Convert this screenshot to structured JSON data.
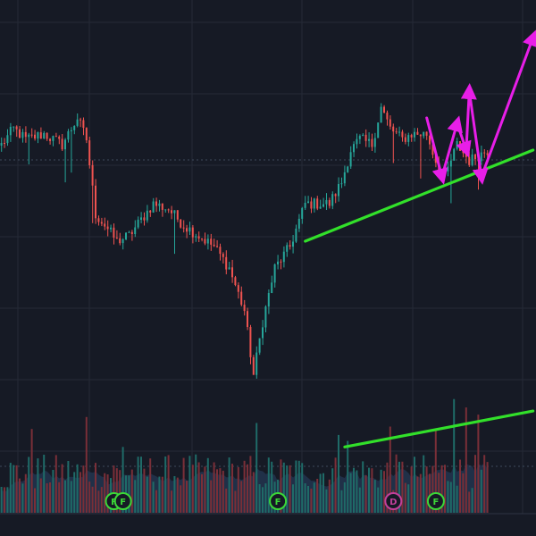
{
  "colors": {
    "background": "#161a25",
    "grid": "#252a36",
    "up": "#26a69a",
    "down": "#ef5350",
    "volume_up": "#1f6b68",
    "volume_down": "#7a2f38",
    "volume_area": "#2a4366",
    "trendline": "#32e02a",
    "pattern": "#e81ee8",
    "price_line": "#3d4a5c",
    "volume_ma_line": "#3d4a5c",
    "marker_f": "#3cd838",
    "marker_d": "#c2409a"
  },
  "chart_data": {
    "type": "candlestick",
    "title": "",
    "xlabel": "",
    "ylabel": "",
    "ylim": [
      0,
      100
    ],
    "volume_ylim": [
      0,
      100
    ],
    "grid": true,
    "price_anchor_points": [
      [
        0,
        73
      ],
      [
        4,
        76
      ],
      [
        8,
        74
      ],
      [
        14,
        75
      ],
      [
        20,
        73
      ],
      [
        25,
        78
      ],
      [
        28,
        74
      ],
      [
        31,
        60
      ],
      [
        34,
        58
      ],
      [
        38,
        55
      ],
      [
        42,
        56
      ],
      [
        46,
        59
      ],
      [
        50,
        62
      ],
      [
        55,
        61
      ],
      [
        60,
        58
      ],
      [
        65,
        56
      ],
      [
        70,
        54
      ],
      [
        75,
        50
      ],
      [
        80,
        42
      ],
      [
        83,
        30
      ],
      [
        86,
        40
      ],
      [
        90,
        50
      ],
      [
        95,
        54
      ],
      [
        100,
        62
      ],
      [
        108,
        62
      ],
      [
        112,
        66
      ],
      [
        115,
        72
      ],
      [
        118,
        74
      ],
      [
        122,
        73
      ],
      [
        125,
        80
      ],
      [
        128,
        76
      ],
      [
        132,
        74
      ],
      [
        135,
        75
      ],
      [
        140,
        75
      ],
      [
        143,
        70
      ],
      [
        146,
        67
      ],
      [
        150,
        73
      ],
      [
        154,
        70
      ],
      [
        157,
        71
      ],
      [
        160,
        72
      ]
    ],
    "volume_base": 35,
    "volume_spikes": [
      {
        "bar": 10,
        "value": 70
      },
      {
        "bar": 28,
        "value": 80
      },
      {
        "bar": 40,
        "value": 55
      },
      {
        "bar": 84,
        "value": 75
      },
      {
        "bar": 111,
        "value": 65
      },
      {
        "bar": 114,
        "value": 60
      },
      {
        "bar": 128,
        "value": 72
      },
      {
        "bar": 143,
        "value": 70
      },
      {
        "bar": 149,
        "value": 95
      },
      {
        "bar": 153,
        "value": 88
      },
      {
        "bar": 157,
        "value": 82
      }
    ],
    "trendlines": [
      {
        "pane": "price",
        "from": [
          100,
          55
        ],
        "to": [
          175,
          72
        ]
      },
      {
        "pane": "volume",
        "from": [
          113,
          55
        ],
        "to": [
          175,
          85
        ]
      }
    ],
    "pattern_zigzag": [
      [
        140,
        78
      ],
      [
        145,
        67
      ],
      [
        150,
        77
      ],
      [
        153,
        72
      ],
      [
        154,
        83
      ],
      [
        158,
        67
      ],
      [
        175,
        93
      ]
    ],
    "event_markers": [
      {
        "label": "F",
        "bar": 37,
        "type": "F"
      },
      {
        "label": "F",
        "bar": 40,
        "type": "F"
      },
      {
        "label": "F",
        "bar": 91,
        "type": "F"
      },
      {
        "label": "D",
        "bar": 129,
        "type": "D"
      },
      {
        "label": "F",
        "bar": 143,
        "type": "F"
      }
    ]
  }
}
